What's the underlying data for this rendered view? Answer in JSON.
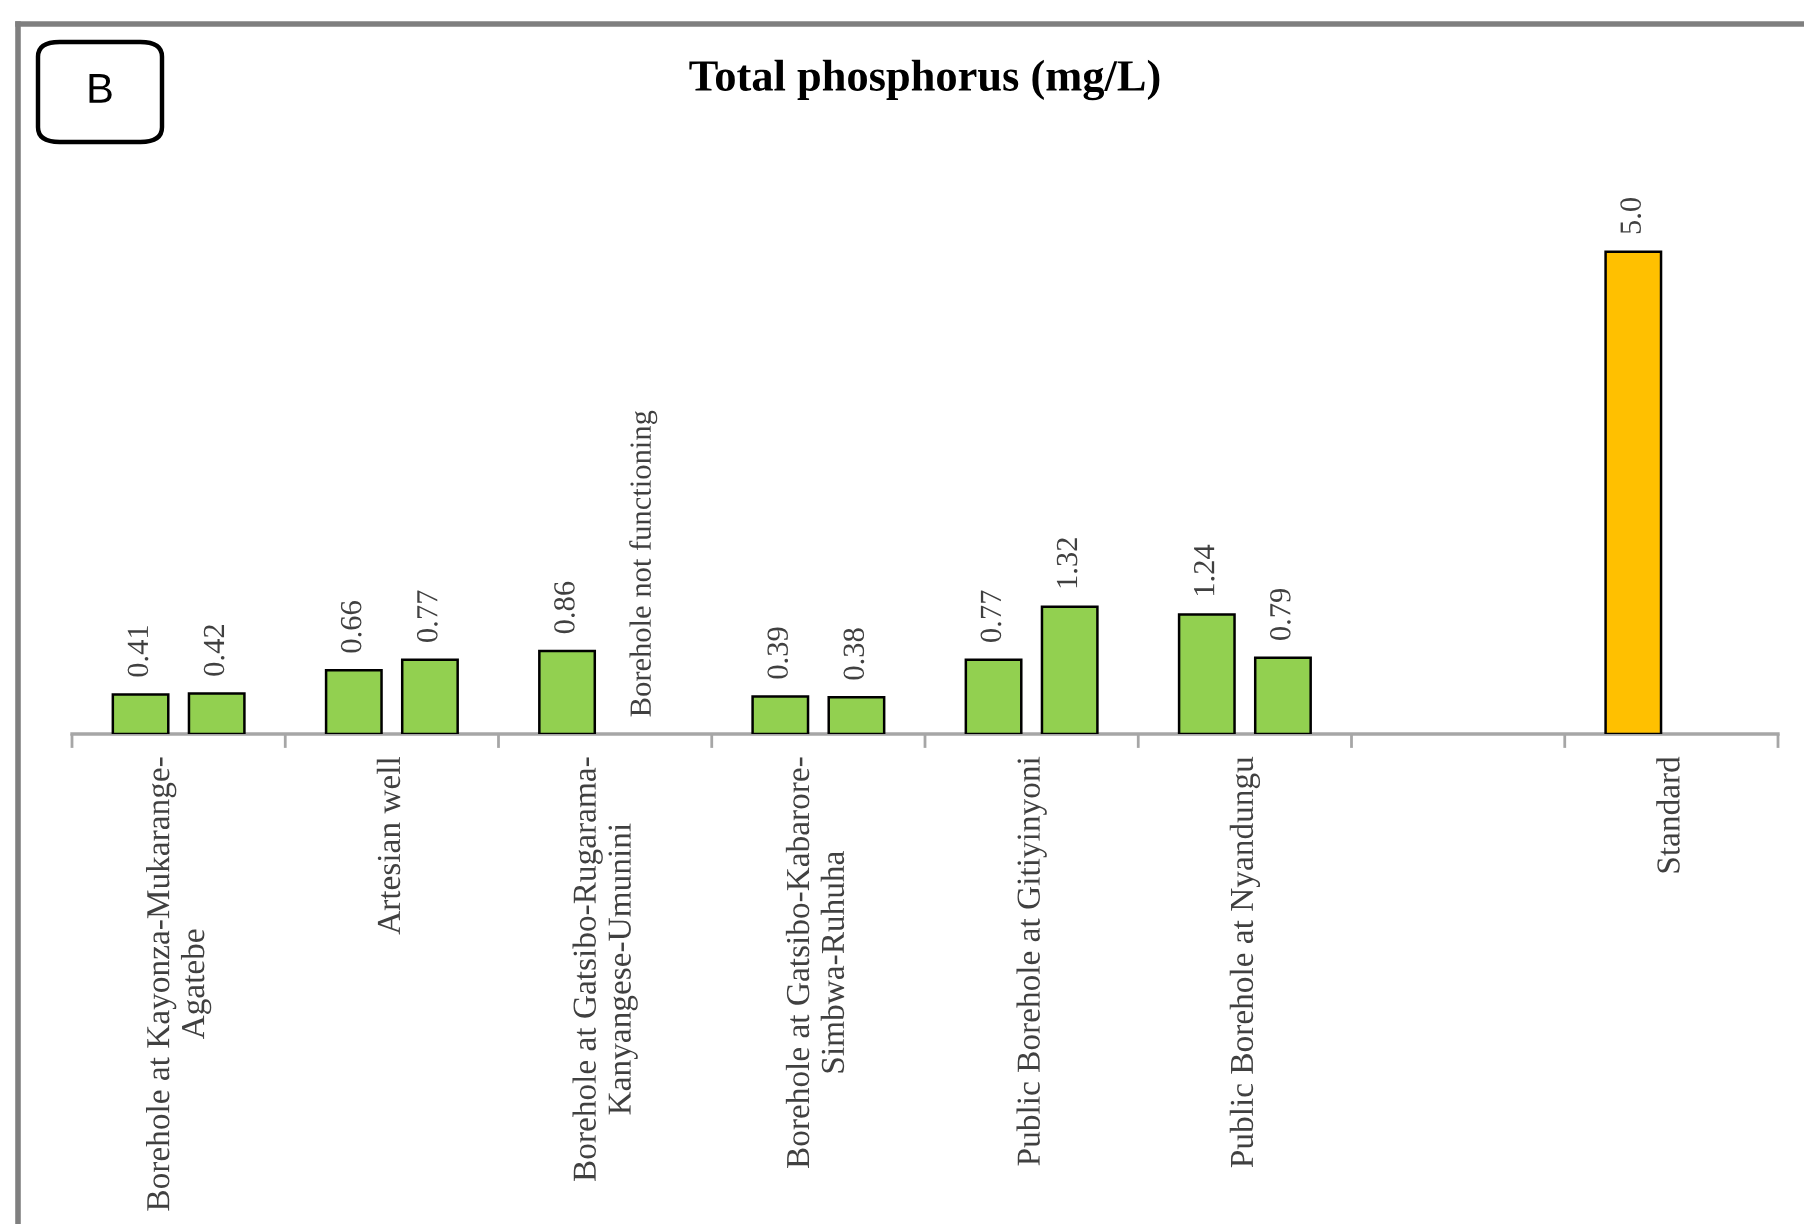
{
  "chart_data": {
    "type": "bar",
    "title": "Total phosphorus (mg/L)",
    "categories": [
      "Borehole at Kayonza-Mukarange-Agatebe",
      "Artesian well",
      "Borehole at Gatsibo-Rugarama-Kanyangese-Umunini",
      "Borehole at Gatsibo-Kabarore-Simbwa-Ruhuha",
      "Public Borehole at Gitiyinyoni",
      "Public Borehole at Nyandungu",
      null,
      "Standard"
    ],
    "series": [
      {
        "colors": [
          "#92d050",
          "#92d050",
          "#92d050",
          "#92d050",
          "#92d050",
          "#92d050",
          null,
          "#ffc000"
        ],
        "values": [
          0.41,
          0.66,
          0.86,
          0.39,
          0.77,
          1.24,
          null,
          5.0
        ],
        "value_labels": [
          "0.41",
          "0.66",
          "0.86",
          "0.39",
          "0.77",
          "1.24",
          null,
          "5.0"
        ]
      },
      {
        "color": "#92d050",
        "values": [
          0.42,
          0.77,
          null,
          0.38,
          1.32,
          0.79,
          null,
          null
        ],
        "value_labels": [
          "0.42",
          "0.77",
          "Borehole not functioning",
          "0.38",
          "1.32",
          "0.79",
          null,
          null
        ]
      }
    ],
    "tick_labels": "x",
    "annotations": [
      "B"
    ]
  }
}
